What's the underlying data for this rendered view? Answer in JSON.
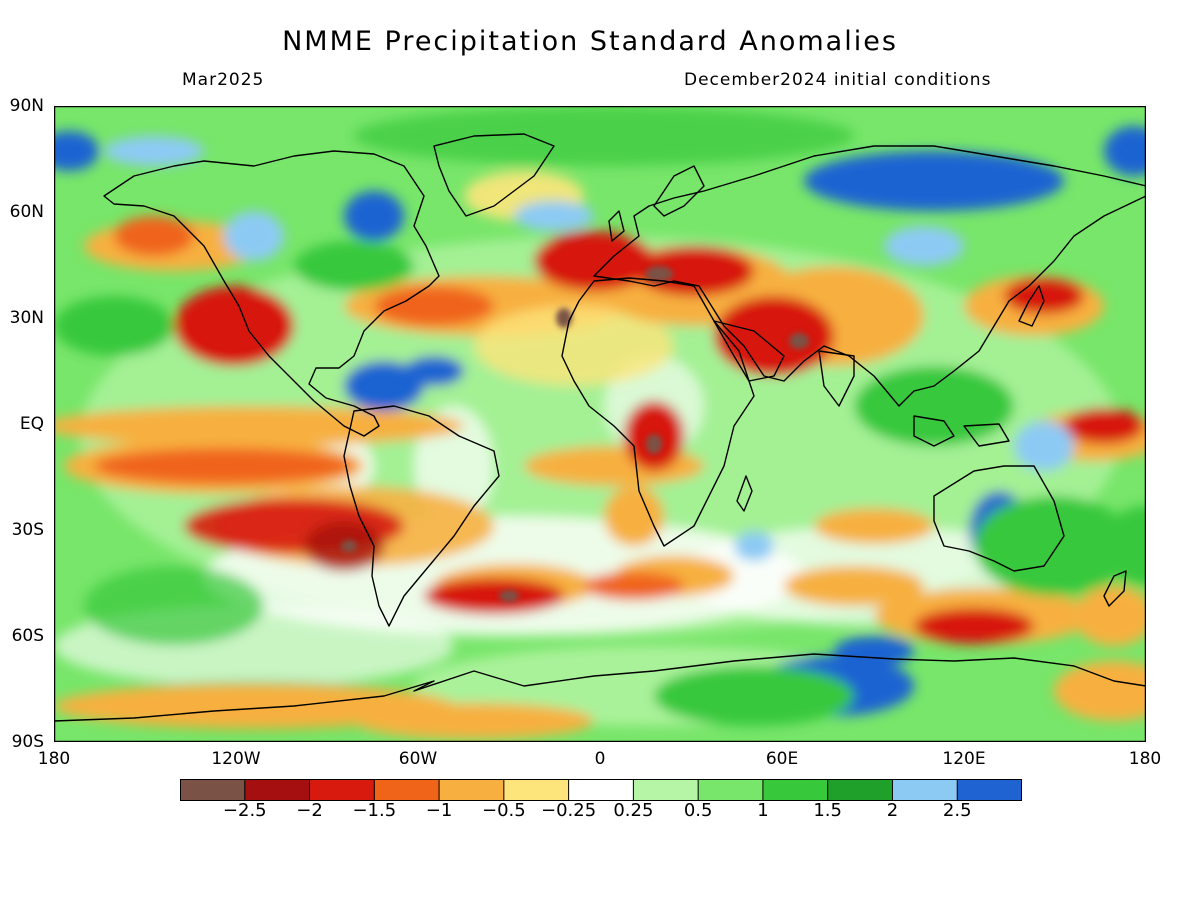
{
  "title": "NMME Precipitation Standard Anomalies",
  "valid_month": "Mar2025",
  "initial_conditions": "December2024 initial conditions",
  "lat_labels": [
    "90N",
    "60N",
    "30N",
    "EQ",
    "30S",
    "60S",
    "90S"
  ],
  "lon_labels": [
    "180",
    "120W",
    "60W",
    "0",
    "60E",
    "120E",
    "180"
  ],
  "colorbar": {
    "labels": [
      "−2.5",
      "−2",
      "−1.5",
      "−1",
      "−0.5",
      "−0.25",
      "0.25",
      "0.5",
      "1",
      "1.5",
      "2",
      "2.5"
    ],
    "colors": [
      "#7a5246",
      "#a50f0f",
      "#d7190e",
      "#f0641a",
      "#f7b040",
      "#fde57c",
      "#ffffff",
      "#b6f5a6",
      "#78e66a",
      "#37c83c",
      "#1ea02a",
      "#8ccaf4",
      "#1f63d2"
    ]
  }
}
